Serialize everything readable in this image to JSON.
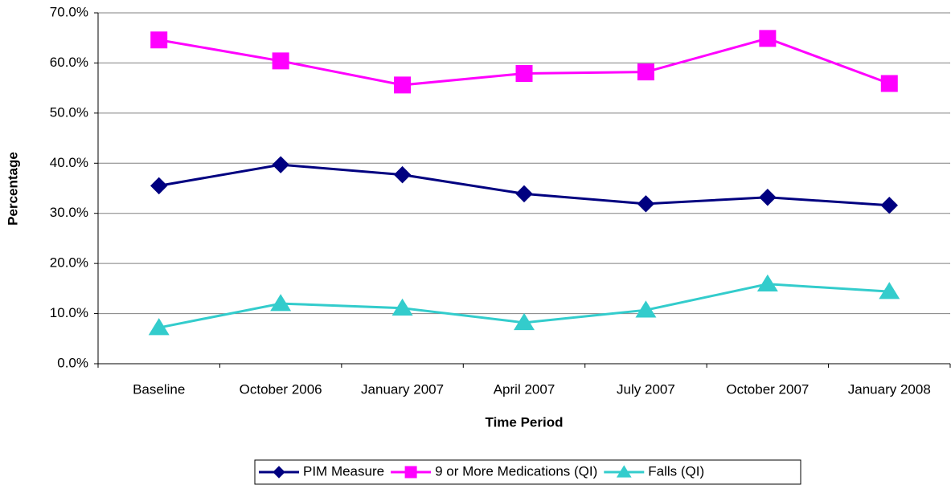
{
  "chart_data": {
    "type": "line",
    "x_label": "Time Period",
    "y_label": "Percentage",
    "categories": [
      "Baseline",
      "October 2006",
      "January 2007",
      "April 2007",
      "July 2007",
      "October 2007",
      "January 2008"
    ],
    "series": [
      {
        "name": "PIM Measure",
        "color": "#000080",
        "marker": "diamond",
        "values": [
          35.5,
          39.7,
          37.7,
          33.9,
          31.9,
          33.2,
          31.6
        ]
      },
      {
        "name": "9 or More Medications (QI)",
        "color": "#ff00ff",
        "marker": "square",
        "values": [
          64.6,
          60.4,
          55.6,
          57.9,
          58.2,
          64.9,
          55.9
        ]
      },
      {
        "name": "Falls (QI)",
        "color": "#33cccc",
        "marker": "triangle",
        "values": [
          7.2,
          12.0,
          11.1,
          8.2,
          10.7,
          15.9,
          14.4
        ]
      }
    ],
    "ylim": [
      0,
      70
    ],
    "yticks": [
      {
        "value": 0,
        "label": "0.0%"
      },
      {
        "value": 10,
        "label": "10.0%"
      },
      {
        "value": 20,
        "label": "20.0%"
      },
      {
        "value": 30,
        "label": "30.0%"
      },
      {
        "value": 40,
        "label": "40.0%"
      },
      {
        "value": 50,
        "label": "50.0%"
      },
      {
        "value": 60,
        "label": "60.0%"
      },
      {
        "value": 70,
        "label": "70.0%"
      }
    ],
    "grid": true,
    "legend": "bottom"
  }
}
